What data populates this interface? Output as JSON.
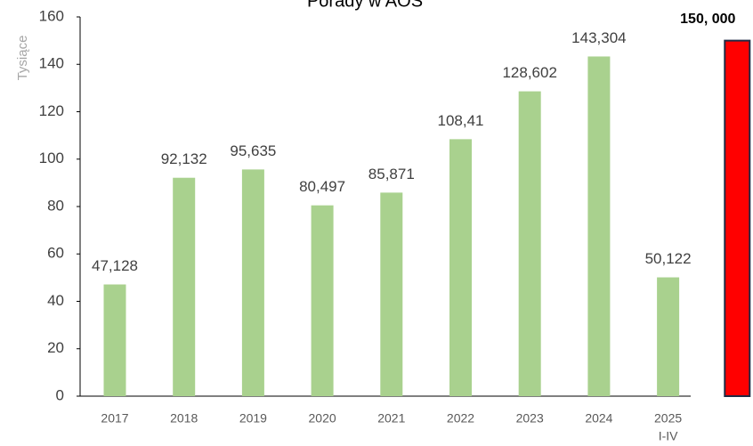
{
  "chart_data": {
    "type": "bar",
    "title": "Porady w AOS",
    "y_label": "Tysiące",
    "categories": [
      "2017",
      "2018",
      "2019",
      "2020",
      "2021",
      "2022",
      "2023",
      "2024",
      [
        "2025",
        "I-IV"
      ],
      null
    ],
    "values": [
      47.128,
      92.132,
      95.635,
      80.497,
      85.871,
      108.41,
      128.602,
      143.304,
      50.122,
      150
    ],
    "value_labels": [
      "47,128",
      "92,132",
      "95,635",
      "80,497",
      "85,871",
      "108,41",
      "128,602",
      "143,304",
      "50,122",
      "150, 000"
    ],
    "colors": [
      "#a9d18e",
      "#a9d18e",
      "#a9d18e",
      "#a9d18e",
      "#a9d18e",
      "#a9d18e",
      "#a9d18e",
      "#a9d18e",
      "#a9d18e",
      "#ff0000"
    ],
    "ylim": [
      0,
      160
    ],
    "yticks": [
      0,
      20,
      40,
      60,
      80,
      100,
      120,
      140,
      160
    ],
    "grid": false
  }
}
